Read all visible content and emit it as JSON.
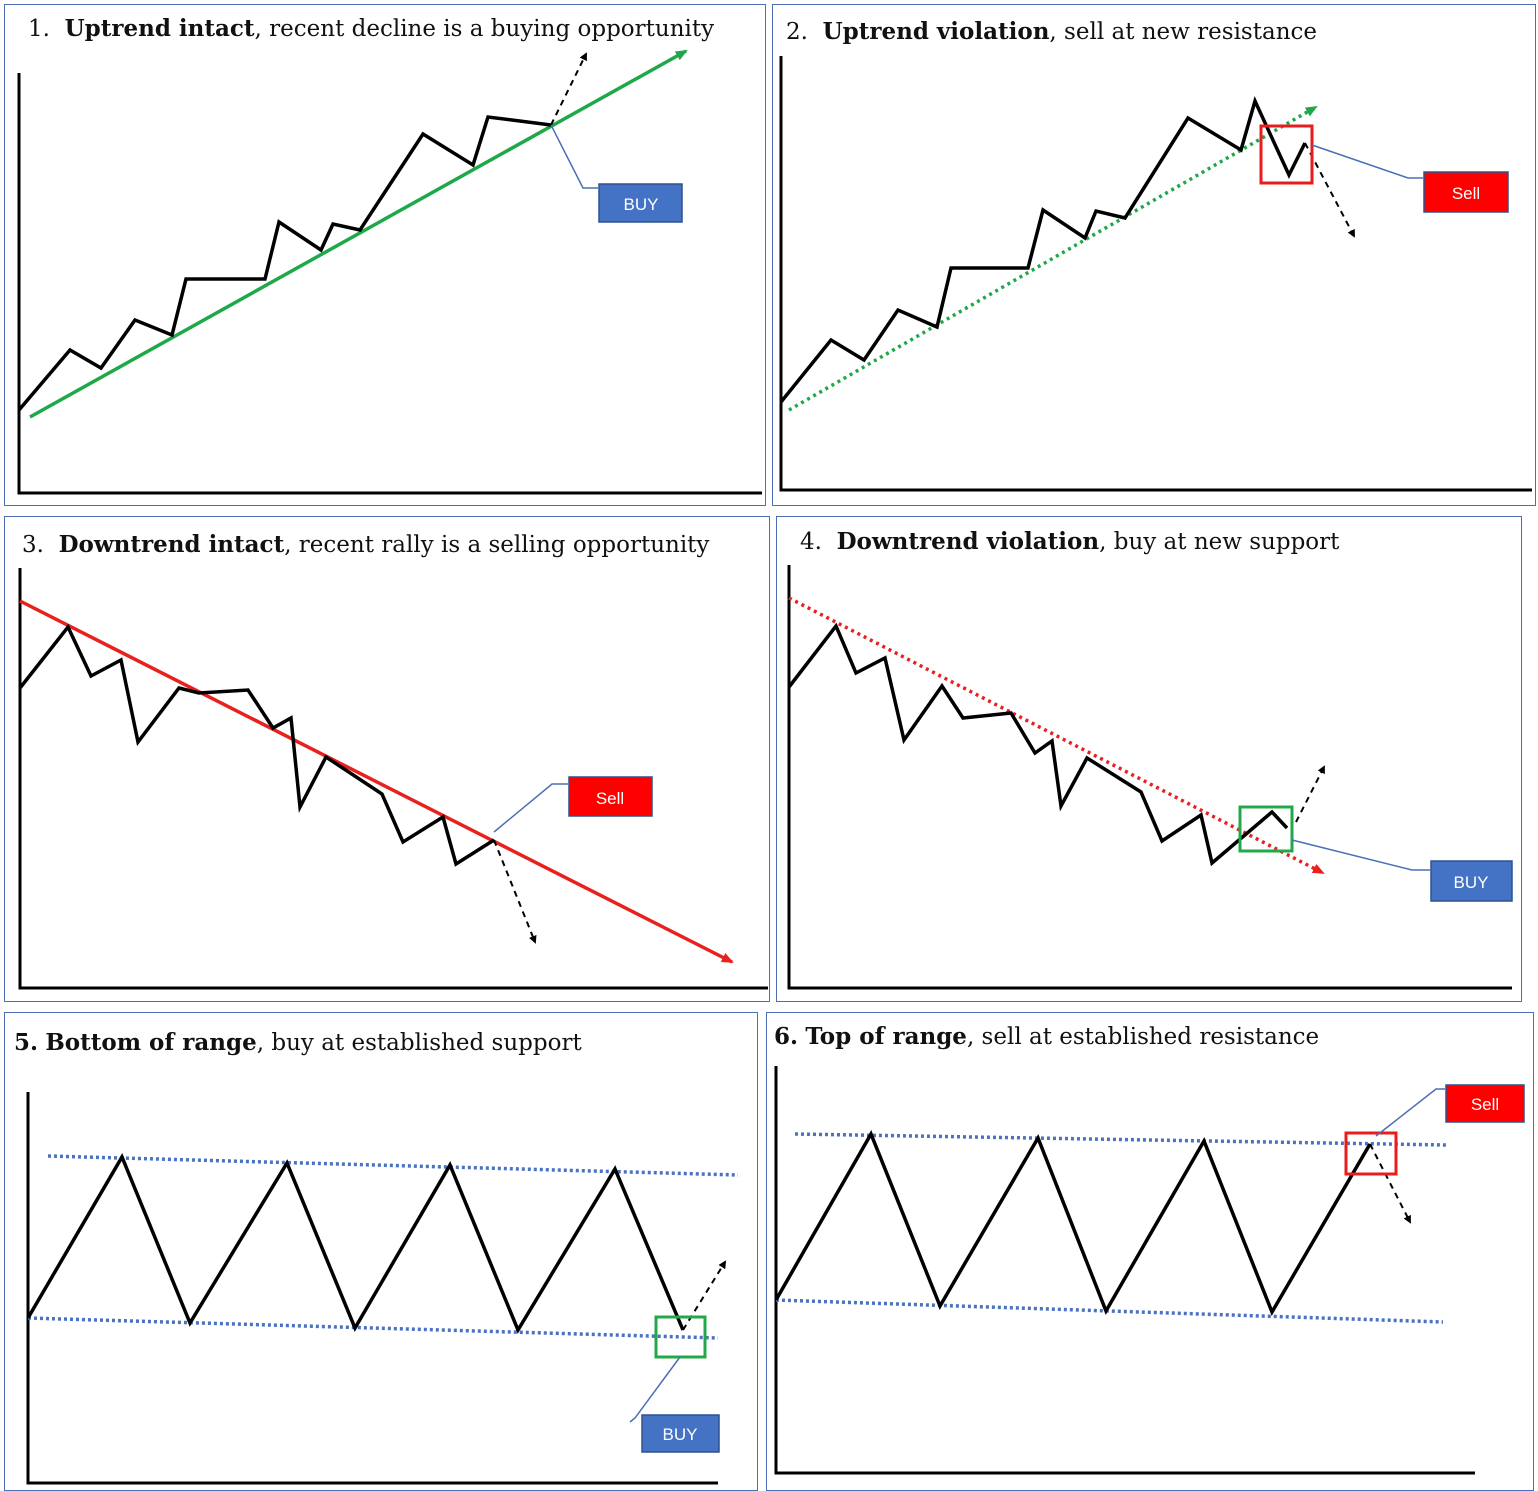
{
  "colors": {
    "panel_border": "#4a6fb5",
    "price_line": "#000000",
    "uptrend_green": "#1ea84a",
    "downtrend_red": "#e8201e",
    "range_blue": "#4a72c0",
    "buy_box": "#4472c4",
    "sell_box": "#ff0000",
    "highlight_green": "#22a84a",
    "highlight_red": "#e81c1c",
    "callout_line": "#4a6fb5"
  },
  "panels": [
    {
      "number": "1.",
      "bold": "Uptrend intact",
      "rest": ", recent decline is a buying opportunity",
      "label": "BUY"
    },
    {
      "number": "2.",
      "bold": "Uptrend violation",
      "rest": ", sell at new resistance",
      "label": "Sell"
    },
    {
      "number": "3.",
      "bold": "Downtrend intact",
      "rest": ", recent rally is a selling opportunity",
      "label": "Sell"
    },
    {
      "number": "4.",
      "bold": "Downtrend violation",
      "rest": ", buy at new support",
      "label": "BUY"
    },
    {
      "number": "5.",
      "bold": "Bottom of range",
      "rest": ", buy at established support",
      "label": "BUY"
    },
    {
      "number": "6.",
      "bold": "Top of range",
      "rest": ", sell at established resistance",
      "label": "Sell"
    }
  ]
}
